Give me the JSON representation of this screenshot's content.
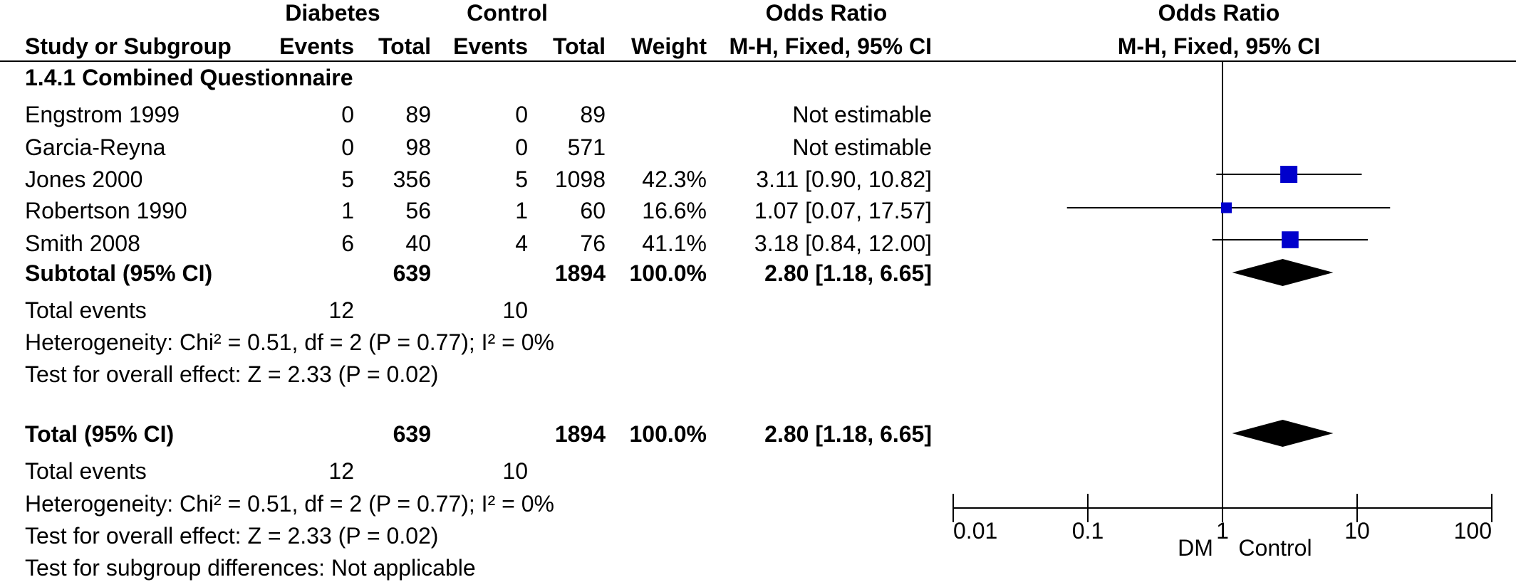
{
  "header": {
    "group_labels": [
      "Diabetes",
      "Control"
    ],
    "effect_title_left": "Odds Ratio",
    "effect_title_right": "Odds Ratio",
    "columns": [
      "Study or Subgroup",
      "Events",
      "Total",
      "Events",
      "Total",
      "Weight",
      "M-H, Fixed, 95% CI"
    ],
    "plot_method": "M-H, Fixed, 95% CI"
  },
  "subgroup": {
    "title": "1.4.1 Combined Questionnaire",
    "studies": [
      {
        "name": "Engstrom 1999",
        "e1": "0",
        "t1": "89",
        "e2": "0",
        "t2": "89",
        "weight": "",
        "ci_text": "Not estimable"
      },
      {
        "name": "Garcia-Reyna",
        "e1": "0",
        "t1": "98",
        "e2": "0",
        "t2": "571",
        "weight": "",
        "ci_text": "Not estimable"
      },
      {
        "name": "Jones 2000",
        "e1": "5",
        "t1": "356",
        "e2": "5",
        "t2": "1098",
        "weight": "42.3%",
        "ci_text": "3.11 [0.90, 10.82]"
      },
      {
        "name": "Robertson 1990",
        "e1": "1",
        "t1": "56",
        "e2": "1",
        "t2": "60",
        "weight": "16.6%",
        "ci_text": "1.07 [0.07, 17.57]"
      },
      {
        "name": "Smith 2008",
        "e1": "6",
        "t1": "40",
        "e2": "4",
        "t2": "76",
        "weight": "41.1%",
        "ci_text": "3.18 [0.84, 12.00]"
      }
    ],
    "subtotal": {
      "label": "Subtotal (95% CI)",
      "t1": "639",
      "t2": "1894",
      "weight": "100.0%",
      "ci_text": "2.80 [1.18, 6.65]"
    },
    "total_events": {
      "label": "Total events",
      "e1": "12",
      "e2": "10"
    },
    "heterogeneity": "Heterogeneity: Chi² = 0.51, df = 2 (P = 0.77); I² = 0%",
    "overall_effect": "Test for overall effect: Z = 2.33 (P = 0.02)"
  },
  "total": {
    "label": "Total (95% CI)",
    "t1": "639",
    "t2": "1894",
    "weight": "100.0%",
    "ci_text": "2.80 [1.18, 6.65]",
    "total_events": {
      "label": "Total events",
      "e1": "12",
      "e2": "10"
    },
    "heterogeneity": "Heterogeneity: Chi² = 0.51, df = 2 (P = 0.77); I² = 0%",
    "overall_effect": "Test for overall effect: Z = 2.33 (P = 0.02)",
    "subgroup_diff": "Test for subgroup differences: Not applicable"
  },
  "axis": {
    "left_label": "DM",
    "right_label": "Control"
  },
  "colors": {
    "study_marker": "#0000CC",
    "diamond": "#000000"
  },
  "chart_data": {
    "type": "forest",
    "scale": "log",
    "xlim": [
      0.01,
      100
    ],
    "ticks": [
      0.01,
      0.1,
      1,
      10,
      100
    ],
    "tick_labels": [
      "0.01",
      "0.1",
      "1",
      "10",
      "100"
    ],
    "reference_line": 1,
    "studies": [
      {
        "name": "Jones 2000",
        "or": 3.11,
        "lo": 0.9,
        "hi": 10.82,
        "weight": 42.3
      },
      {
        "name": "Robertson 1990",
        "or": 1.07,
        "lo": 0.07,
        "hi": 17.57,
        "weight": 16.6
      },
      {
        "name": "Smith 2008",
        "or": 3.18,
        "lo": 0.84,
        "hi": 12.0,
        "weight": 41.1
      }
    ],
    "pooled": [
      {
        "name": "Subtotal (95% CI)",
        "or": 2.8,
        "lo": 1.18,
        "hi": 6.65
      },
      {
        "name": "Total (95% CI)",
        "or": 2.8,
        "lo": 1.18,
        "hi": 6.65
      }
    ]
  }
}
